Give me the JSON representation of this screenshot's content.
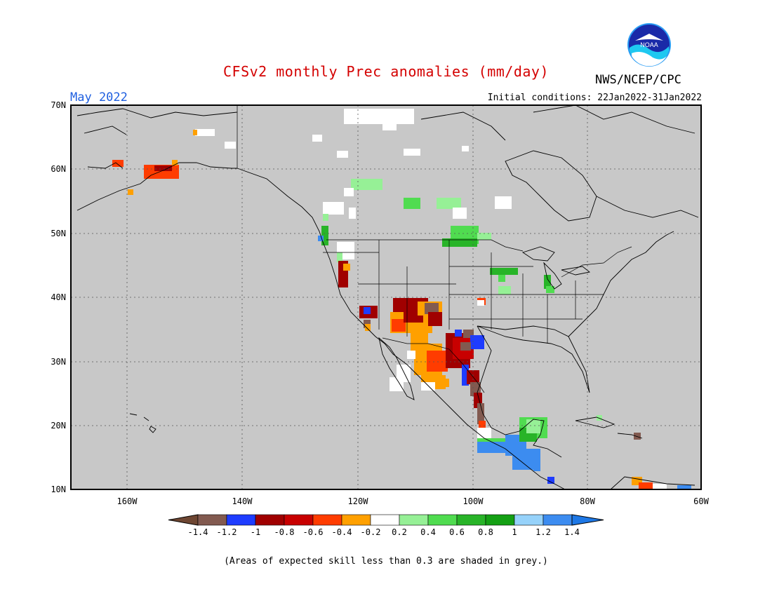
{
  "header": {
    "title": "CFSv2 monthly Prec anomalies (mm/day)",
    "org": "NWS/NCEP/CPC",
    "logo_text": "NOAA",
    "month": "May 2022",
    "initial_conditions": "Initial conditions: 22Jan2022-31Jan2022"
  },
  "map": {
    "lat_labels": [
      "70N",
      "60N",
      "50N",
      "40N",
      "30N",
      "20N",
      "10N"
    ],
    "lon_labels": [
      "160W",
      "140W",
      "120W",
      "100W",
      "80W",
      "60W"
    ],
    "background_color": "#c8c8c8",
    "gridlines": true
  },
  "colorbar": {
    "labels": [
      "-1.4",
      "-1.2",
      "-1",
      "-0.8",
      "-0.6",
      "-0.4",
      "-0.2",
      "0.2",
      "0.4",
      "0.6",
      "0.8",
      "1",
      "1.2",
      "1.4"
    ],
    "colors": [
      "#825a50",
      "#1e3cff",
      "#a00000",
      "#c80000",
      "#ff3c00",
      "#ffa000",
      "#ffffff",
      "#96f096",
      "#50dc50",
      "#28b428",
      "#14a014",
      "#96d2fa",
      "#3c8cf0"
    ],
    "low_color": "#6e4632",
    "high_color": "#1e78e6"
  },
  "note": "(Areas of expected skill less than 0.3 are shaded in grey.)"
}
